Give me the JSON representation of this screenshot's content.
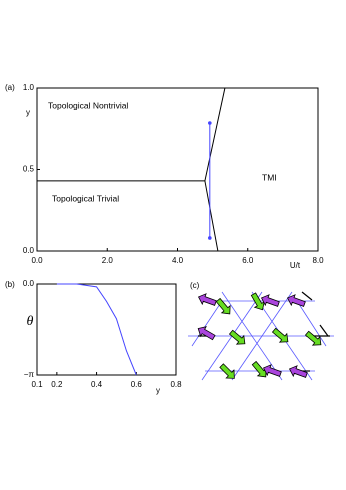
{
  "chart_data": [
    {
      "type": "line",
      "label": "(a)",
      "x_label": "U/t",
      "y_label": "y",
      "xlim": [
        0,
        8
      ],
      "ylim": [
        0,
        1
      ],
      "xticks": [
        {
          "value": 0,
          "label": "0.0"
        },
        {
          "value": 2,
          "label": "2.0"
        },
        {
          "value": 4,
          "label": "4.0"
        },
        {
          "value": 6,
          "label": "6.0"
        },
        {
          "value": 8,
          "label": "8.0"
        }
      ],
      "yticks": [
        {
          "value": 0,
          "label": "0.0"
        },
        {
          "value": 0.5,
          "label": "0.5"
        },
        {
          "value": 1,
          "label": "1.0"
        }
      ],
      "annotations": [
        "Topological Nontrivial",
        "Topological Trivial",
        "TMI"
      ],
      "series": [
        {
          "color": "#000000",
          "x": [
            0,
            4.78
          ],
          "values": [
            0.43,
            0.43
          ]
        },
        {
          "color": "#000000",
          "x": [
            5.15,
            4.78,
            5.35
          ],
          "values": [
            0,
            0.43,
            1.0
          ]
        },
        {
          "color": "#4444ff",
          "x": [
            4.92,
            4.92
          ],
          "values": [
            0.08,
            0.785
          ],
          "markers": true
        }
      ]
    },
    {
      "type": "line",
      "label": "(b)",
      "x_label": "y",
      "y_label": "θ",
      "xlim": [
        0.1,
        0.8
      ],
      "ylim": [
        -3.14159,
        0
      ],
      "xticks": [
        0.1,
        0.2,
        0.4,
        0.6,
        0.8
      ],
      "yticks": [
        {
          "value": 0,
          "label": "0.0"
        },
        {
          "value": -3.14159,
          "label": "−π"
        }
      ],
      "series": [
        {
          "color": "#4444ff",
          "x": [
            0.2,
            0.3,
            0.4,
            0.45,
            0.5,
            0.55,
            0.6
          ],
          "values": [
            0,
            0,
            -0.1,
            -0.6,
            -1.2,
            -2.3,
            -3.14159
          ]
        }
      ]
    }
  ],
  "panel_c": {
    "label": "(c)"
  }
}
